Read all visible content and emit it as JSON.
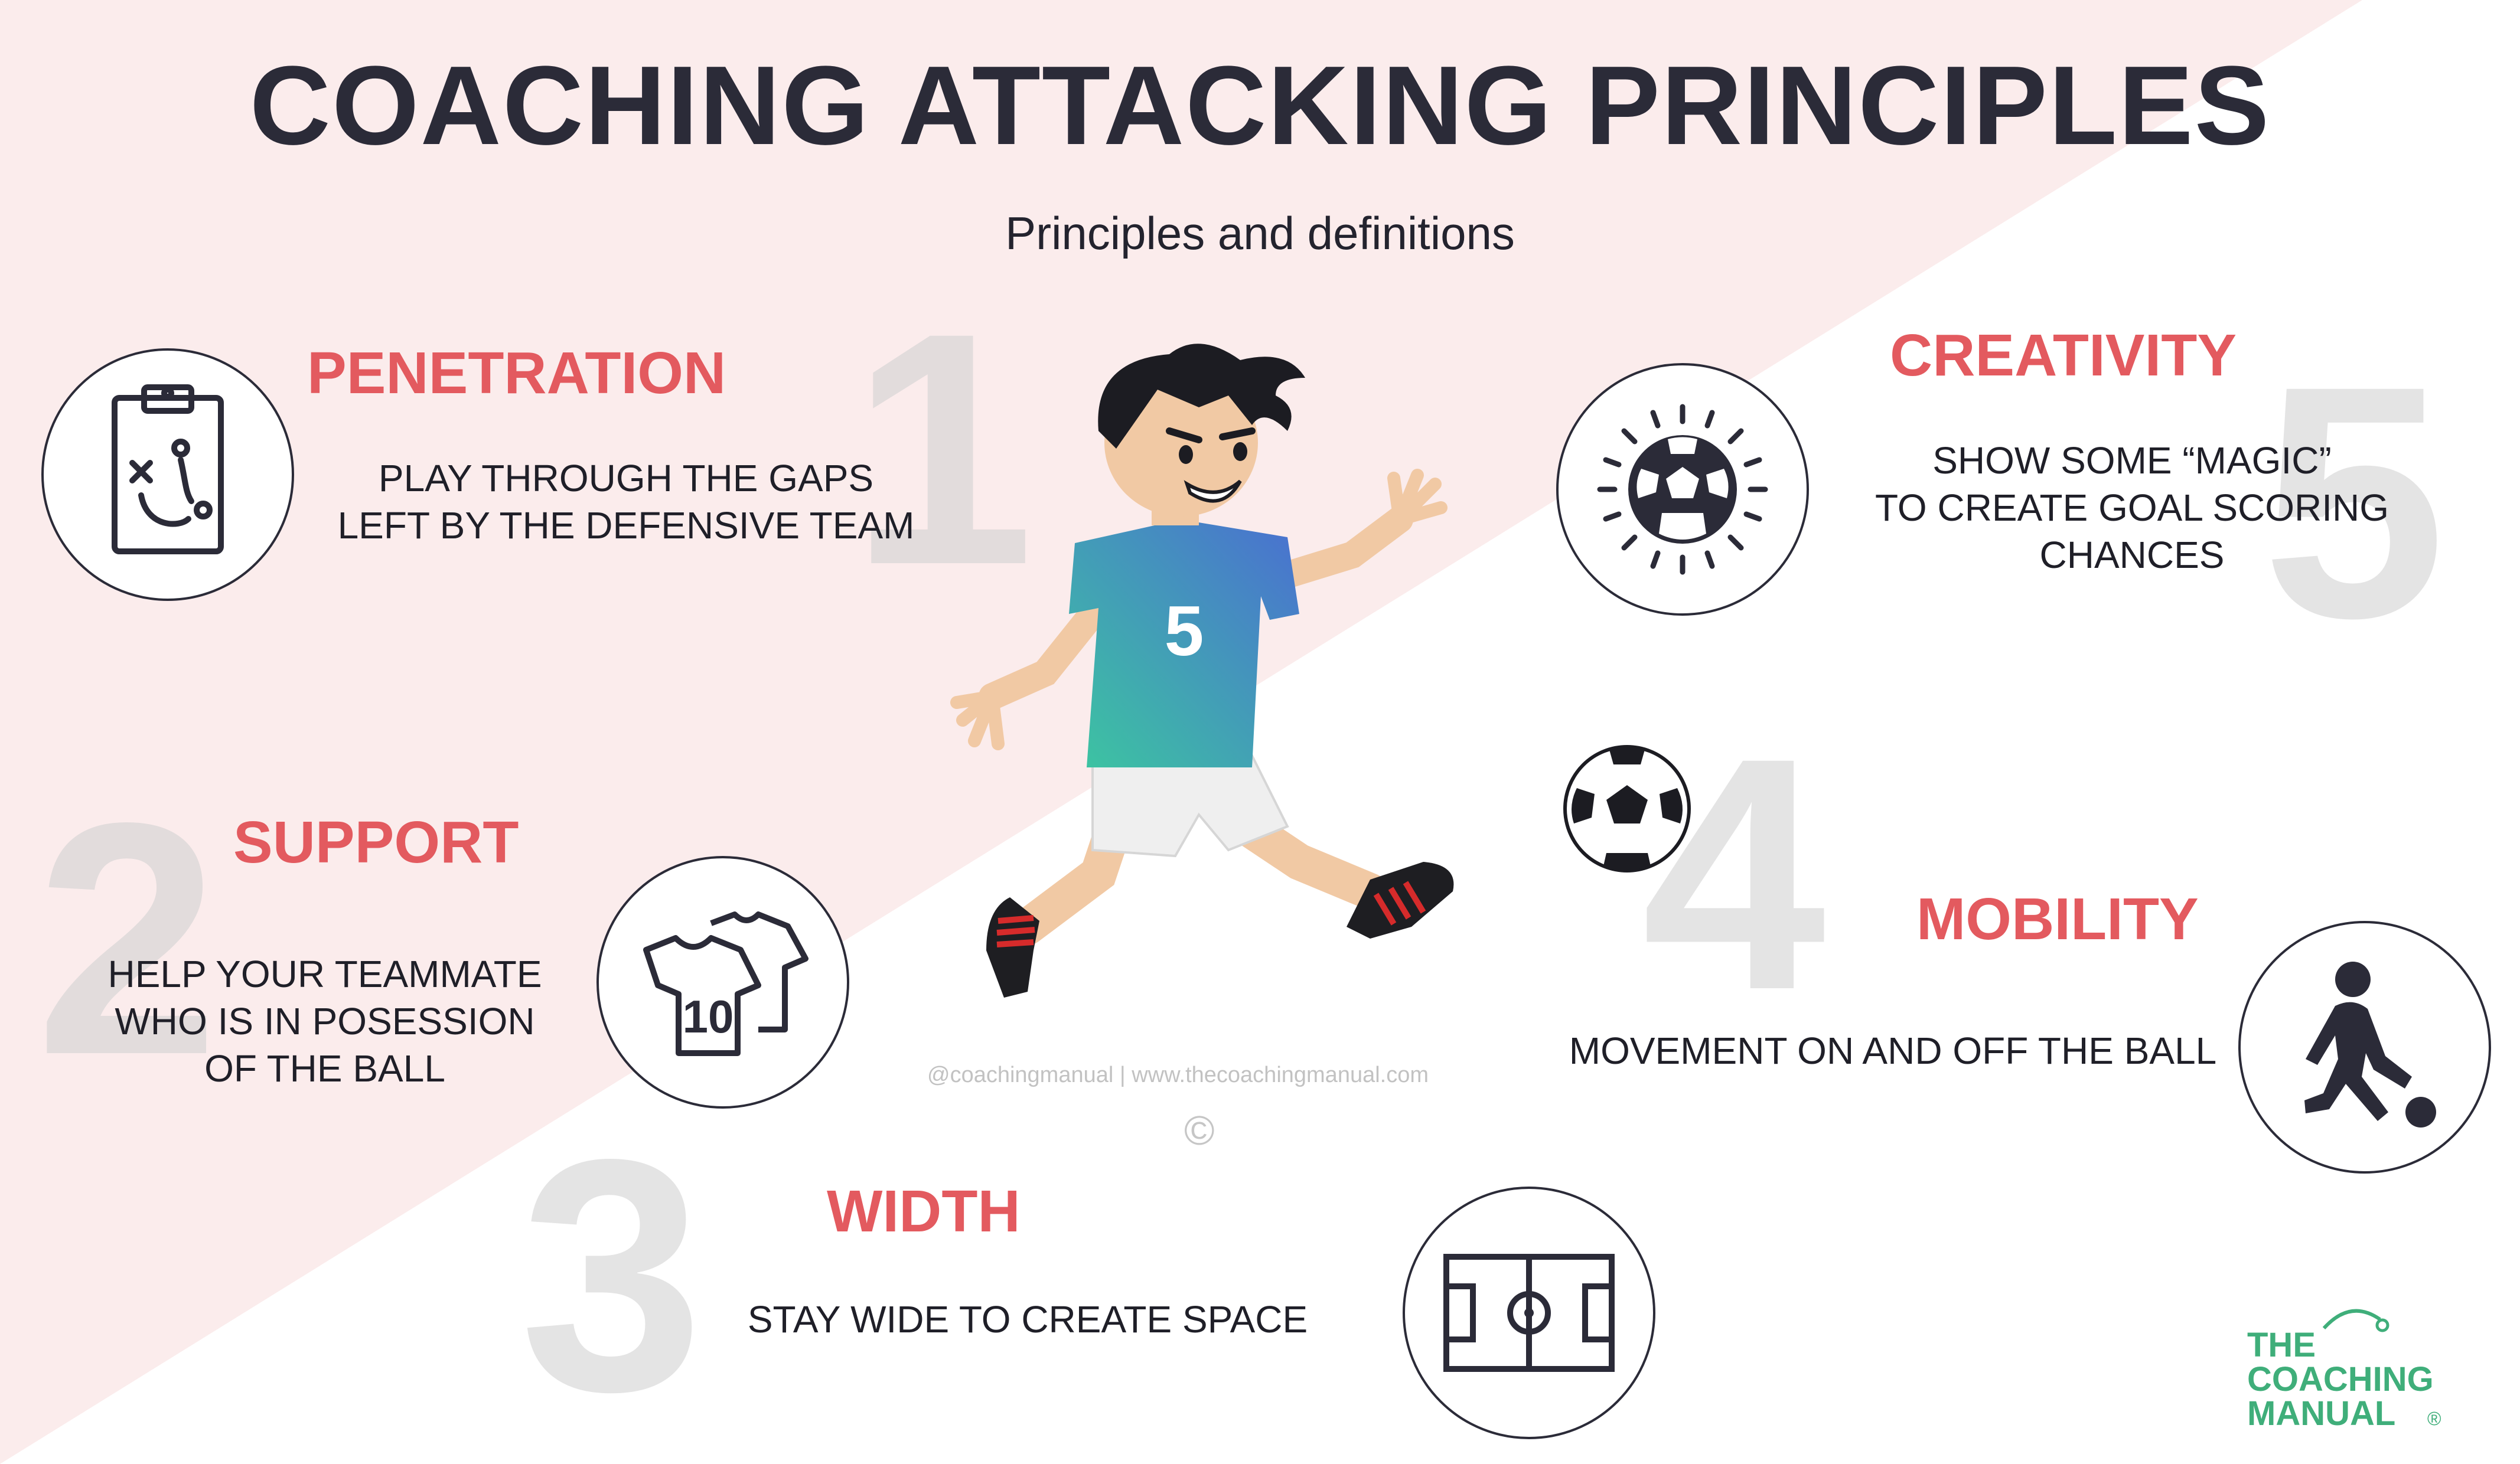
{
  "header": {
    "title": "COACHING ATTACKING PRINCIPLES",
    "subtitle": "Principles and definitions"
  },
  "principles": [
    {
      "number": "1",
      "heading": "PENETRATION",
      "lines": [
        "PLAY THROUGH THE GAPS",
        "LEFT BY THE DEFENSIVE TEAM"
      ],
      "icon": "clipboard-tactics-icon"
    },
    {
      "number": "2",
      "heading": "SUPPORT",
      "lines": [
        "HELP YOUR TEAMMATE",
        "WHO IS IN POSESSION",
        "OF THE BALL"
      ],
      "icon": "shirts-icon",
      "shirt_number": "10"
    },
    {
      "number": "3",
      "heading": "WIDTH",
      "lines": [
        "STAY WIDE TO CREATE SPACE"
      ],
      "icon": "pitch-icon"
    },
    {
      "number": "4",
      "heading": "MOBILITY",
      "lines": [
        "MOVEMENT ON AND OFF THE BALL"
      ],
      "icon": "player-kicking-icon"
    },
    {
      "number": "5",
      "heading": "CREATIVITY",
      "lines": [
        "SHOW SOME “MAGIC”",
        "TO CREATE GOAL SCORING",
        "CHANCES"
      ],
      "icon": "shining-ball-icon"
    }
  ],
  "illustration": {
    "jersey_number": "5",
    "credit": "@coachingmanual  |  www.thecoachingmanual.com",
    "copyright": "©"
  },
  "logo": {
    "line1": "THE",
    "line2": "COACHING",
    "line3": "MANUAL",
    "registered": "®"
  },
  "colors": {
    "accent": "#e35a5f",
    "dark": "#2b2b38",
    "pink_bg": "#fbecec",
    "brand_green": "#3fae7a"
  }
}
